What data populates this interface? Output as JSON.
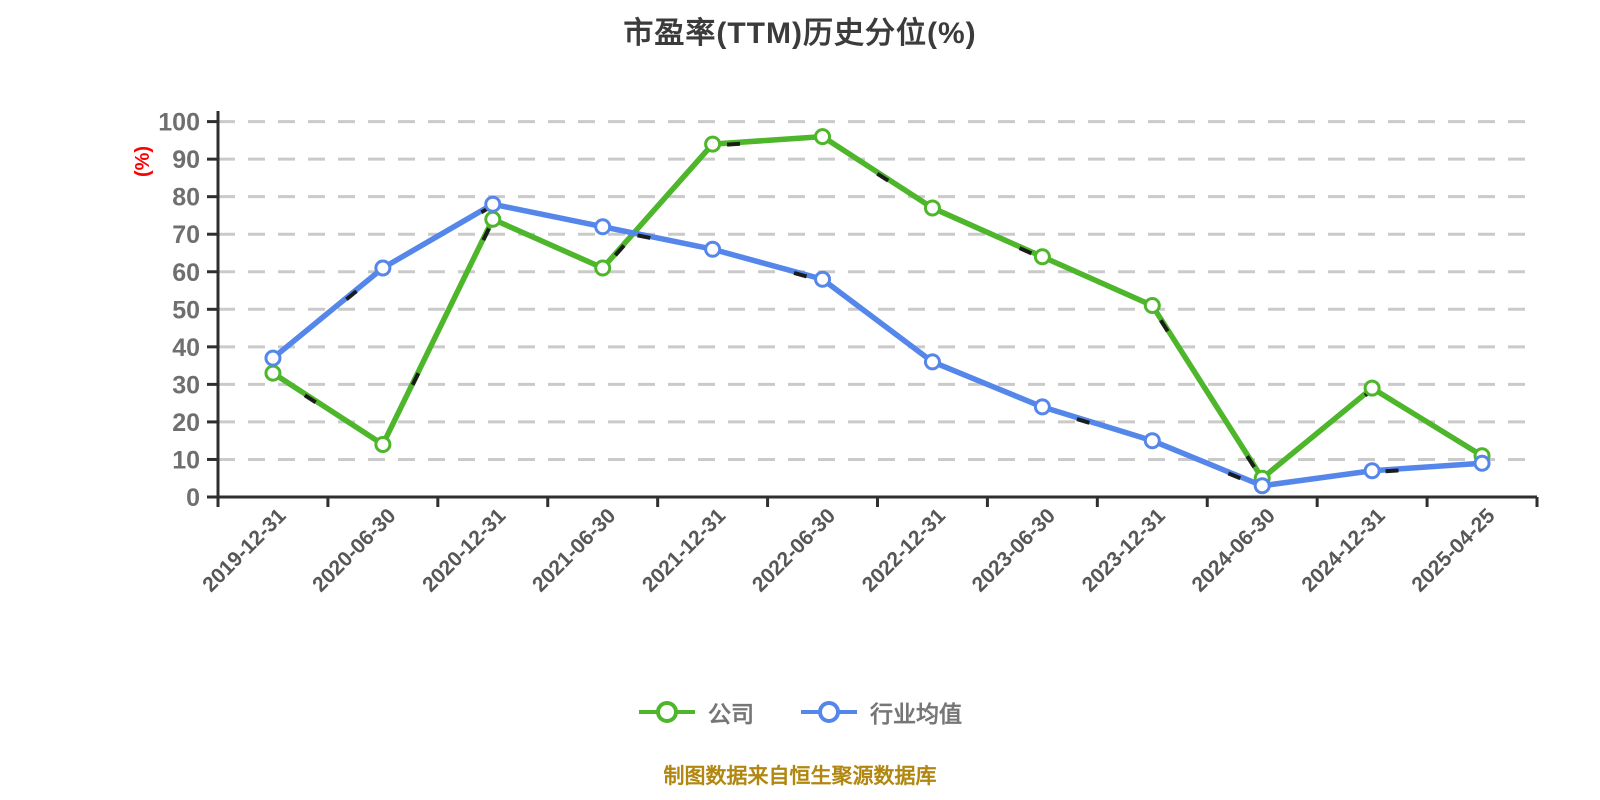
{
  "title": "市盈率(TTM)历史分位(%)",
  "y_axis_unit": "(%)",
  "footer": {
    "source_note": "制图数据来自恒生聚源数据库"
  },
  "colors": {
    "company_line": "#4eb62b",
    "industry_line": "#5586e9",
    "grid_line": "#cacaca",
    "axis_line": "#2f2f2f",
    "y_tick_label": "#6f6f6f",
    "x_tick_label": "#575757",
    "title_text": "#3b3b3b",
    "legend_text": "#767676",
    "source_note_text": "#b1870f",
    "y_axis_unit_text": "#ff0000",
    "marker_fill": "#ffffff",
    "dash_overlay": "#161616"
  },
  "chart_data": {
    "type": "line",
    "title": "市盈率(TTM)历史分位(%)",
    "ylabel": "(%)",
    "xlabel": "",
    "ylim": [
      0,
      100
    ],
    "ytick_step": 10,
    "grid": "horizontal-dashed",
    "legend_position": "bottom",
    "categories": [
      "2019-12-31",
      "2020-06-30",
      "2020-12-31",
      "2021-06-30",
      "2021-12-31",
      "2022-06-30",
      "2022-12-31",
      "2023-06-30",
      "2023-12-31",
      "2024-06-30",
      "2024-12-31",
      "2025-04-25"
    ],
    "series": [
      {
        "name": "公司",
        "color": "#4eb62b",
        "marker": "circle",
        "values": [
          33,
          14,
          74,
          61,
          94,
          96,
          77,
          64,
          51,
          5,
          29,
          11
        ]
      },
      {
        "name": "行业均值",
        "color": "#5586e9",
        "marker": "circle",
        "values": [
          37,
          61,
          78,
          72,
          66,
          58,
          36,
          24,
          15,
          3,
          7,
          9
        ]
      }
    ]
  }
}
